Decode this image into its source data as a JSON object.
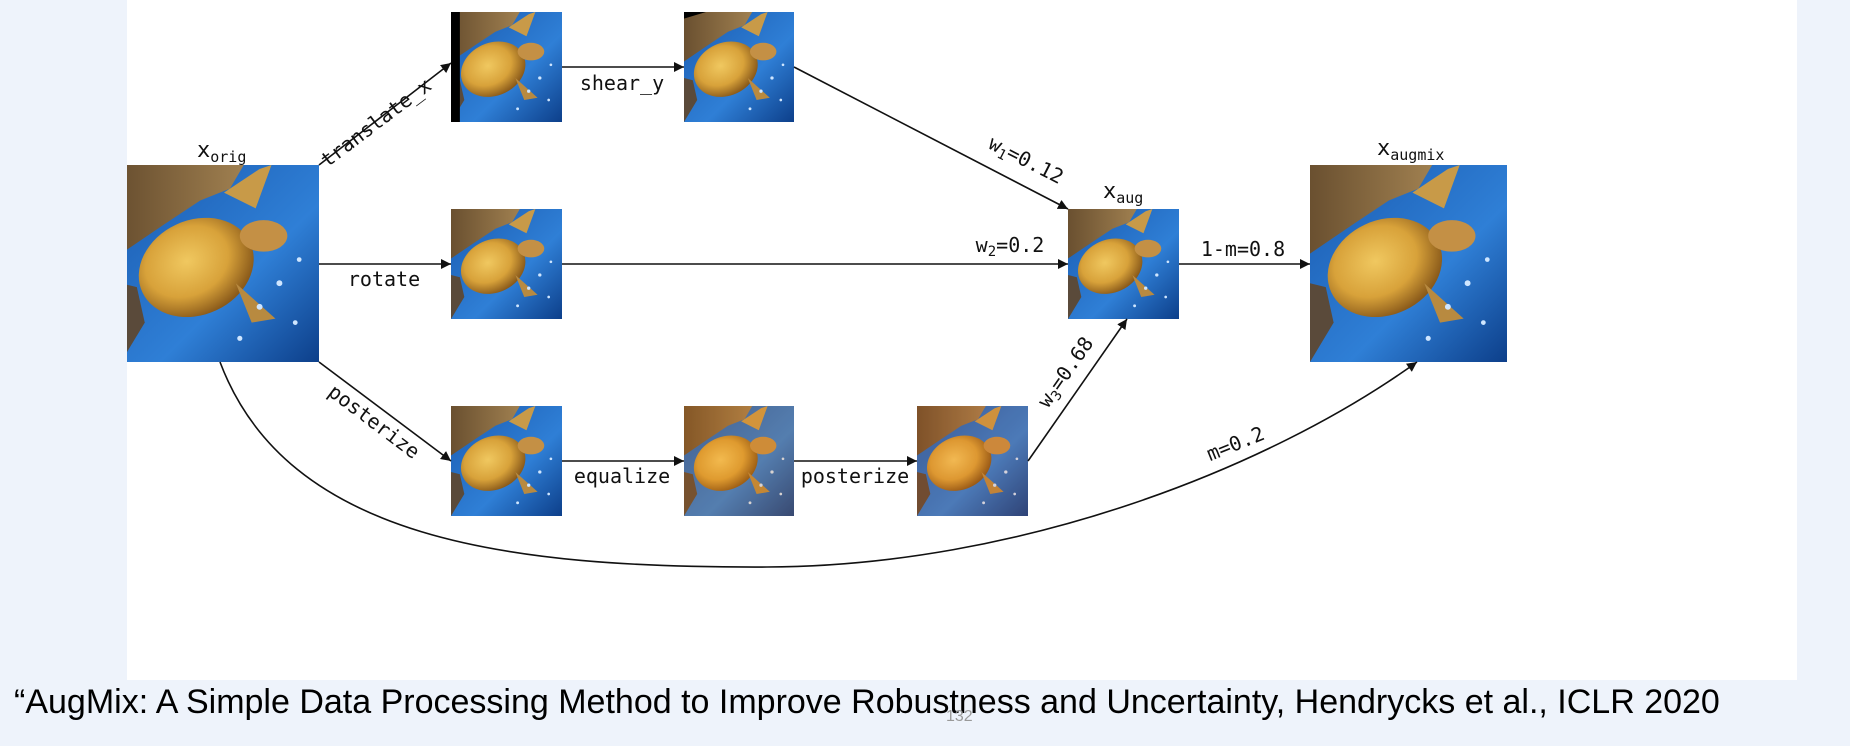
{
  "diagram": {
    "nodes": {
      "x_orig": {
        "base": "x",
        "sub": "orig"
      },
      "x_aug": {
        "base": "x",
        "sub": "aug"
      },
      "x_augmix": {
        "base": "x",
        "sub": "augmix"
      }
    },
    "operations": {
      "translate_x": "translate_x",
      "shear_y": "shear_y",
      "rotate": "rotate",
      "posterize_1": "posterize",
      "equalize": "equalize",
      "posterize_2": "posterize"
    },
    "weights": {
      "w1": {
        "base": "w",
        "sub": "1",
        "value": "=0.12"
      },
      "w2": {
        "base": "w",
        "sub": "2",
        "value": "=0.2"
      },
      "w3": {
        "base": "w",
        "sub": "3",
        "value": "=0.68"
      }
    },
    "mix_labels": {
      "one_minus_m": "1-m=0.8",
      "m": "m=0.2"
    }
  },
  "footer": {
    "caption": "“AugMix: A Simple Data Processing Method to Improve Robustness and Uncertainty, Hendrycks et al., ICLR 2020",
    "page_number": "132"
  },
  "colors": {
    "slide_background": "#eef3fb",
    "panel_background": "#ffffff",
    "line": "#111111",
    "water_deep": "#0d3f8a",
    "water_light": "#4a90e0",
    "turtle_shell": "#d8a23a",
    "reef": "#8a6a3a"
  }
}
